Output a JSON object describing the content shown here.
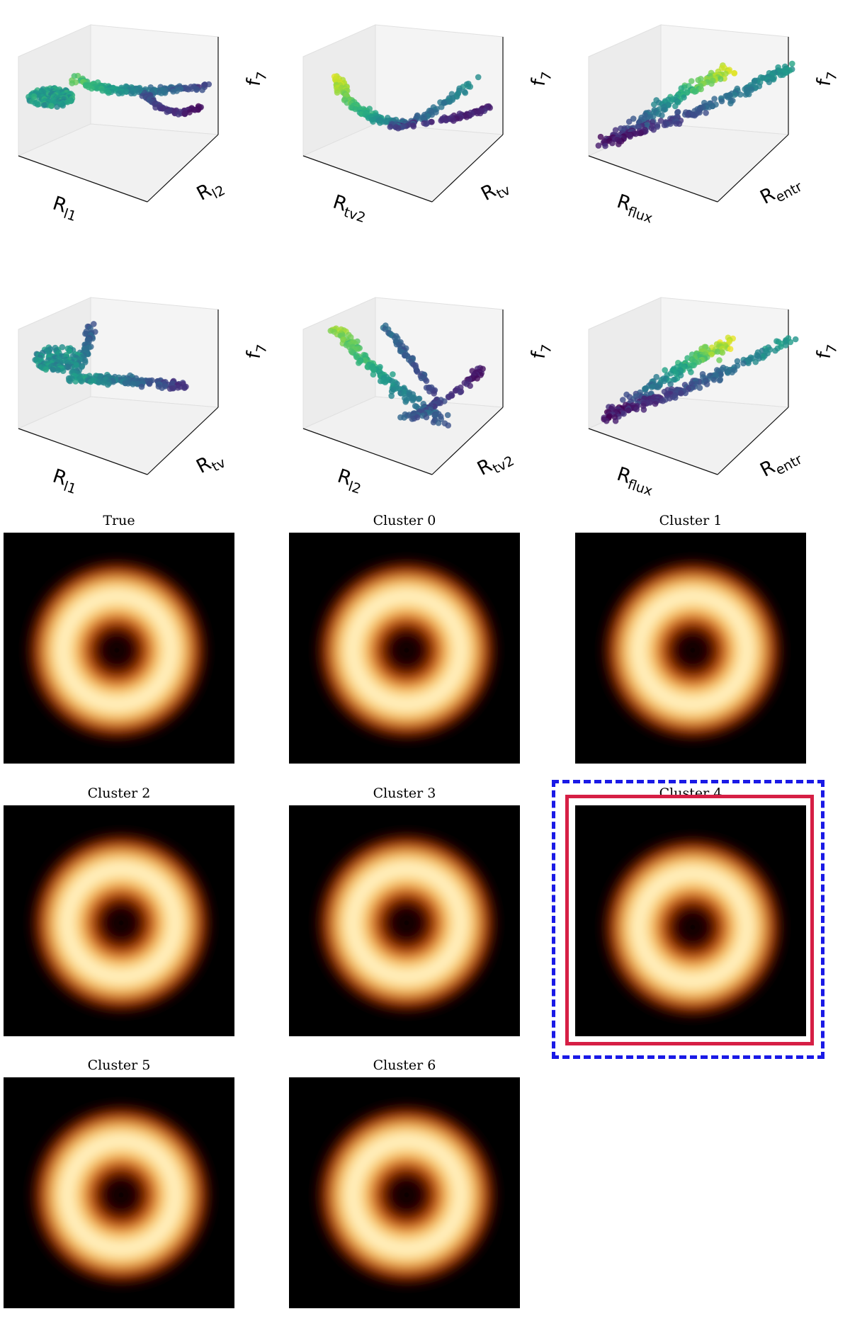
{
  "chart_data": [
    {
      "type": "scatter",
      "xlabel": {
        "base": "R",
        "sub": "l1"
      },
      "ylabel": {
        "base": "R",
        "sub": "l2"
      },
      "zlabel": {
        "base": "f",
        "sub": "7"
      },
      "colormap": "viridis"
    },
    {
      "type": "scatter",
      "xlabel": {
        "base": "R",
        "sub": "tv2"
      },
      "ylabel": {
        "base": "R",
        "sub": "tv"
      },
      "zlabel": {
        "base": "f",
        "sub": "7"
      },
      "colormap": "viridis"
    },
    {
      "type": "scatter",
      "xlabel": {
        "base": "R",
        "sub": "flux"
      },
      "ylabel": {
        "base": "R",
        "sub": "entr"
      },
      "zlabel": {
        "base": "f",
        "sub": "7"
      },
      "colormap": "viridis"
    },
    {
      "type": "scatter",
      "xlabel": {
        "base": "R",
        "sub": "l1"
      },
      "ylabel": {
        "base": "R",
        "sub": "tv"
      },
      "zlabel": {
        "base": "f",
        "sub": "7"
      },
      "colormap": "viridis"
    },
    {
      "type": "scatter",
      "xlabel": {
        "base": "R",
        "sub": "l2"
      },
      "ylabel": {
        "base": "R",
        "sub": "tv2"
      },
      "zlabel": {
        "base": "f",
        "sub": "7"
      },
      "colormap": "viridis"
    },
    {
      "type": "scatter",
      "xlabel": {
        "base": "R",
        "sub": "flux"
      },
      "ylabel": {
        "base": "R",
        "sub": "entr"
      },
      "zlabel": {
        "base": "f",
        "sub": "7"
      },
      "colormap": "viridis"
    }
  ],
  "images": {
    "colormap": "afmhot",
    "highlight_colors": {
      "outer_dashed": "#1a1ae6",
      "inner_solid": "#d61f45"
    },
    "panels": [
      {
        "title": "True",
        "highlighted": false
      },
      {
        "title": "Cluster 0",
        "highlighted": false
      },
      {
        "title": "Cluster 1",
        "highlighted": false
      },
      {
        "title": "Cluster 2",
        "highlighted": false
      },
      {
        "title": "Cluster 3",
        "highlighted": false
      },
      {
        "title": "Cluster 4",
        "highlighted": true
      },
      {
        "title": "Cluster 5",
        "highlighted": false
      },
      {
        "title": "Cluster 6",
        "highlighted": false
      }
    ]
  }
}
